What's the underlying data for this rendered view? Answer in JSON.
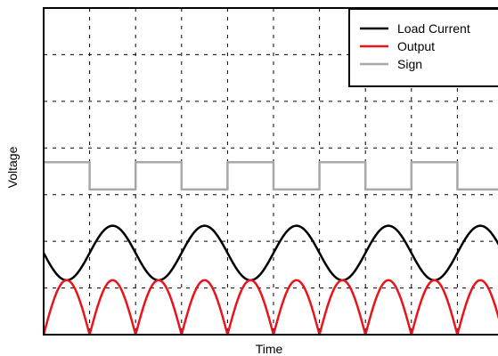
{
  "chart_data": {
    "type": "line",
    "title": "",
    "xlabel": "Time",
    "ylabel": "Voltage",
    "xlim": [
      0,
      10
    ],
    "ylim": [
      0,
      7.2
    ],
    "x_tick_labels": [],
    "y_tick_labels": [],
    "grid": true,
    "legend_position": "top-right",
    "series": [
      {
        "name": "Load Current",
        "color": "#000000",
        "shape": "sine",
        "period": 2,
        "phase_max_at": 1.5,
        "center": 1.8,
        "amplitude": 0.6
      },
      {
        "name": "Output",
        "color": "#e8141b",
        "shape": "rectified_sine",
        "period": 1,
        "min": 0,
        "max": 1.2
      },
      {
        "name": "Sign",
        "color": "#a8a8a8",
        "shape": "square",
        "period": 2,
        "levels": [
          3.2,
          3.8
        ],
        "high_intervals_start": 1
      }
    ]
  }
}
